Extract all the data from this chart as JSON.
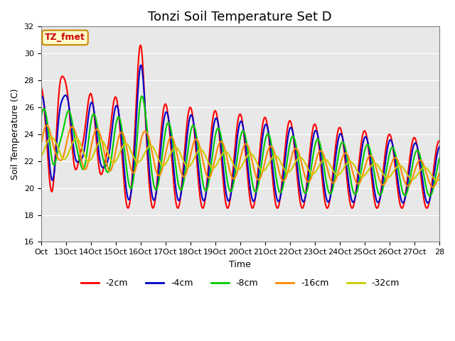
{
  "title": "Tonzi Soil Temperature Set D",
  "xlabel": "Time",
  "ylabel": "Soil Temperature (C)",
  "ylim": [
    16,
    32
  ],
  "yticks": [
    16,
    18,
    20,
    22,
    24,
    26,
    28,
    30,
    32
  ],
  "xtick_labels": [
    "Oct",
    "13Oct",
    "14Oct",
    "15Oct",
    "16Oct",
    "17Oct",
    "18Oct",
    "19Oct",
    "20Oct",
    "21Oct",
    "22Oct",
    "23Oct",
    "24Oct",
    "25Oct",
    "26Oct",
    "27Oct",
    "28"
  ],
  "n_ticks": 17,
  "legend_labels": [
    "-2cm",
    "-4cm",
    "-8cm",
    "-16cm",
    "-32cm"
  ],
  "legend_colors": [
    "#ff0000",
    "#0000cc",
    "#00cc00",
    "#ff8800",
    "#cccc00"
  ],
  "annotation_text": "TZ_fmet",
  "annotation_color": "#cc0000",
  "annotation_bg": "#ffffcc",
  "annotation_border": "#cc8800",
  "plot_bg_color": "#e8e8e8",
  "title_fontsize": 13,
  "label_fontsize": 9,
  "tick_fontsize": 8
}
